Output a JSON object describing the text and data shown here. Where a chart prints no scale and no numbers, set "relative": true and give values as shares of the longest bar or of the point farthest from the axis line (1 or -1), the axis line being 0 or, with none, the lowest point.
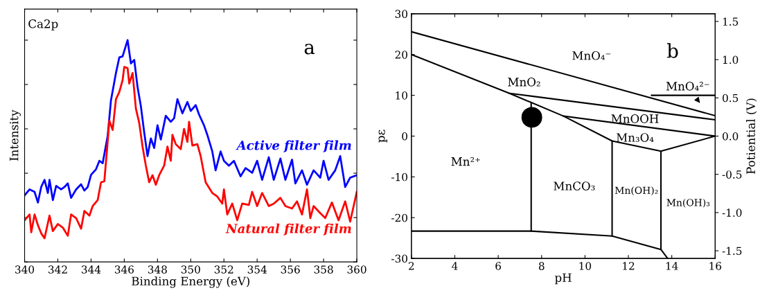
{
  "chart_data": [
    {
      "type": "line",
      "xlabel": "Binding Energy (eV)",
      "ylabel": "Intensity",
      "relative": true,
      "tick_labels": "x",
      "xlim": [
        340,
        360
      ],
      "xticks": [
        340,
        342,
        344,
        346,
        348,
        350,
        352,
        354,
        356,
        358,
        360
      ],
      "annotations": [
        "Ca2p",
        "a"
      ],
      "legend": false,
      "series": [
        {
          "name": "Active filter film",
          "color": "#0000ff",
          "x": [
            340.0,
            340.3,
            340.6,
            340.8,
            341.0,
            341.2,
            341.4,
            341.5,
            341.7,
            341.9,
            342.2,
            342.4,
            342.6,
            342.8,
            343.1,
            343.4,
            343.6,
            343.8,
            344.0,
            344.3,
            344.5,
            344.7,
            345.0,
            345.2,
            345.5,
            345.7,
            345.9,
            346.2,
            346.4,
            346.6,
            346.8,
            347.0,
            347.2,
            347.4,
            347.6,
            347.8,
            348.0,
            348.2,
            348.5,
            348.8,
            349.0,
            349.2,
            349.5,
            349.8,
            350.0,
            350.3,
            350.5,
            350.8,
            351.0,
            351.3,
            351.5,
            351.8,
            352.0,
            352.3,
            352.6,
            353.0,
            353.3,
            353.7,
            354.0,
            354.3,
            354.7,
            355.0,
            355.4,
            355.7,
            356.1,
            356.3,
            356.7,
            357.0,
            357.4,
            357.8,
            358.0,
            358.3,
            358.7,
            359.0,
            359.3,
            359.6,
            360.0
          ],
          "values": [
            0.3,
            0.327,
            0.316,
            0.268,
            0.338,
            0.37,
            0.311,
            0.37,
            0.279,
            0.343,
            0.327,
            0.338,
            0.354,
            0.289,
            0.327,
            0.35,
            0.322,
            0.338,
            0.393,
            0.418,
            0.456,
            0.445,
            0.568,
            0.729,
            0.852,
            0.922,
            0.927,
            1.0,
            0.895,
            0.911,
            0.788,
            0.702,
            0.584,
            0.477,
            0.557,
            0.514,
            0.616,
            0.552,
            0.659,
            0.632,
            0.648,
            0.734,
            0.67,
            0.721,
            0.681,
            0.707,
            0.665,
            0.616,
            0.573,
            0.498,
            0.413,
            0.498,
            0.456,
            0.434,
            0.456,
            0.386,
            0.423,
            0.402,
            0.456,
            0.37,
            0.472,
            0.37,
            0.466,
            0.37,
            0.461,
            0.354,
            0.413,
            0.348,
            0.413,
            0.38,
            0.456,
            0.37,
            0.413,
            0.477,
            0.338,
            0.38,
            0.391
          ]
        },
        {
          "name": "Natural filter film",
          "color": "#ff0000",
          "x": [
            340.0,
            340.3,
            340.4,
            340.6,
            340.8,
            341.0,
            341.2,
            341.5,
            341.7,
            342.0,
            342.3,
            342.6,
            342.8,
            343.1,
            343.4,
            343.6,
            343.9,
            344.1,
            344.4,
            344.6,
            344.8,
            345.0,
            345.1,
            345.3,
            345.5,
            345.7,
            345.9,
            346.0,
            346.2,
            346.3,
            346.5,
            346.7,
            346.9,
            347.1,
            347.3,
            347.5,
            347.7,
            347.9,
            348.1,
            348.4,
            348.6,
            348.8,
            348.9,
            349.1,
            349.4,
            349.6,
            349.8,
            349.9,
            350.1,
            350.4,
            350.6,
            350.9,
            351.3,
            351.6,
            351.9,
            352.0,
            352.2,
            352.5,
            352.8,
            353.1,
            353.5,
            353.7,
            354.0,
            354.3,
            354.7,
            355.0,
            355.4,
            355.7,
            356.1,
            356.4,
            356.7,
            357.0,
            357.2,
            357.4,
            357.8,
            358.1,
            358.5,
            358.9,
            359.3,
            359.6,
            360.0
          ],
          "values": [
            0.188,
            0.214,
            0.134,
            0.214,
            0.166,
            0.129,
            0.107,
            0.209,
            0.139,
            0.171,
            0.155,
            0.118,
            0.214,
            0.198,
            0.15,
            0.23,
            0.209,
            0.252,
            0.279,
            0.359,
            0.364,
            0.541,
            0.638,
            0.595,
            0.734,
            0.766,
            0.82,
            0.879,
            0.874,
            0.804,
            0.852,
            0.691,
            0.627,
            0.52,
            0.434,
            0.359,
            0.391,
            0.348,
            0.391,
            0.434,
            0.52,
            0.456,
            0.573,
            0.531,
            0.509,
            0.6,
            0.541,
            0.632,
            0.525,
            0.531,
            0.477,
            0.359,
            0.311,
            0.295,
            0.263,
            0.327,
            0.214,
            0.263,
            0.188,
            0.263,
            0.257,
            0.316,
            0.252,
            0.311,
            0.252,
            0.263,
            0.289,
            0.252,
            0.241,
            0.273,
            0.214,
            0.327,
            0.198,
            0.252,
            0.22,
            0.198,
            0.268,
            0.188,
            0.273,
            0.182,
            0.316
          ]
        }
      ]
    },
    {
      "type": "line",
      "xlabel": "pH",
      "ylabel": "pε",
      "y2label": "Potiential (V)",
      "xlim": [
        2,
        16
      ],
      "xticks": [
        2,
        4,
        6,
        8,
        10,
        12,
        14,
        16
      ],
      "ylim": [
        -30,
        30
      ],
      "yticks": [
        -30,
        -20,
        -10,
        0,
        10,
        20,
        30
      ],
      "y2lim": [
        -1.6,
        1.6
      ],
      "y2ticks": [
        -1.5,
        {
          "value": -1.0,
          "label": "-1.0"
        },
        -0.5,
        {
          "value": 0.0,
          "label": "0.0"
        },
        0.5,
        {
          "value": 1.0,
          "label": "1.0"
        },
        1.5
      ],
      "legend": false,
      "annotations": [
        "b",
        "MnO₄⁻",
        "MnO₂",
        "MnO₄²⁻",
        "MnOOH",
        "Mn₃O₄",
        "Mn²⁺",
        "MnCO₃",
        "Mn(OH)₂",
        "Mn(OH)₃"
      ],
      "series": [
        {
          "color": "#000000",
          "x": [
            2,
            16
          ],
          "values": [
            25.6,
            5.0
          ]
        },
        {
          "color": "#000000",
          "x": [
            2,
            6.52,
            9.01,
            11.25,
            13.5,
            16
          ],
          "values": [
            20,
            10.5,
            4.9,
            -1.2,
            -3.7,
            0
          ]
        },
        {
          "color": "#000000",
          "x": [
            6.52,
            16
          ],
          "values": [
            10.5,
            4.0
          ]
        },
        {
          "color": "#000000",
          "x": [
            9.01,
            16
          ],
          "values": [
            4.9,
            0
          ]
        },
        {
          "color": "#000000",
          "x": [
            13.07,
            16
          ],
          "values": [
            10,
            10
          ]
        },
        {
          "color": "#000000",
          "x": [
            7.52,
            7.52
          ],
          "values": [
            8.2,
            -23.3
          ]
        },
        {
          "color": "#000000",
          "x": [
            2,
            7.52,
            11.25,
            13.5,
            13.81
          ],
          "values": [
            -23.3,
            -23.3,
            -24.5,
            -27.8,
            -30
          ]
        },
        {
          "color": "#000000",
          "x": [
            11.25,
            11.25
          ],
          "values": [
            -1.2,
            -24.5
          ]
        },
        {
          "color": "#000000",
          "x": [
            13.5,
            13.5
          ],
          "values": [
            -3.7,
            -27.8
          ]
        },
        {
          "type": "scatter",
          "color": "#000000",
          "marker": "circle",
          "x": [
            7.55
          ],
          "values": [
            4.6
          ]
        }
      ]
    }
  ]
}
